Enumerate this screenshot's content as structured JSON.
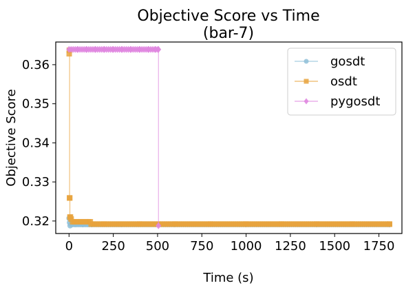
{
  "chart_data": {
    "type": "line",
    "title": "Objective Score vs Time",
    "subtitle": "(bar-7)",
    "xlabel": "Time (s)",
    "ylabel": "Objective Score",
    "xlim": [
      -75,
      1880
    ],
    "ylim": [
      0.3168,
      0.3658
    ],
    "xticks": [
      0,
      250,
      500,
      750,
      1000,
      1250,
      1500,
      1750
    ],
    "yticks": [
      0.32,
      0.33,
      0.34,
      0.35,
      0.36
    ],
    "grid": false,
    "legend_position": "upper-right",
    "series": [
      {
        "name": "gosdt",
        "color": "#8fc0d8",
        "marker": "circle",
        "x": [
          0.5,
          3,
          6,
          10,
          20,
          40,
          80,
          130,
          300,
          600,
          1000,
          1400,
          1810
        ],
        "y": [
          0.3207,
          0.3196,
          0.3188,
          0.3192,
          0.3191,
          0.3191,
          0.3191,
          0.3191,
          0.3191,
          0.3191,
          0.3191,
          0.3191,
          0.3191
        ]
      },
      {
        "name": "osdt",
        "color": "#e8a33d",
        "marker": "square",
        "x": [
          1,
          2,
          3,
          4,
          5,
          8,
          12,
          20,
          30,
          50,
          70,
          100,
          120,
          125,
          200,
          400,
          600,
          800,
          1000,
          1200,
          1400,
          1600,
          1810
        ],
        "y": [
          0.3628,
          0.3637,
          0.3259,
          0.3259,
          0.321,
          0.321,
          0.3205,
          0.3198,
          0.3198,
          0.3198,
          0.3198,
          0.3198,
          0.3198,
          0.3192,
          0.3192,
          0.3192,
          0.3192,
          0.3192,
          0.3192,
          0.3192,
          0.3192,
          0.3192,
          0.3192
        ]
      },
      {
        "name": "pygosdt",
        "color": "#e087e0",
        "marker": "diamond",
        "x": [
          0,
          50,
          100,
          150,
          200,
          250,
          300,
          350,
          400,
          450,
          490,
          505,
          505
        ],
        "y": [
          0.3639,
          0.3639,
          0.3639,
          0.3639,
          0.3639,
          0.3639,
          0.3639,
          0.3639,
          0.3639,
          0.3639,
          0.3639,
          0.3639,
          0.3188
        ]
      }
    ]
  }
}
